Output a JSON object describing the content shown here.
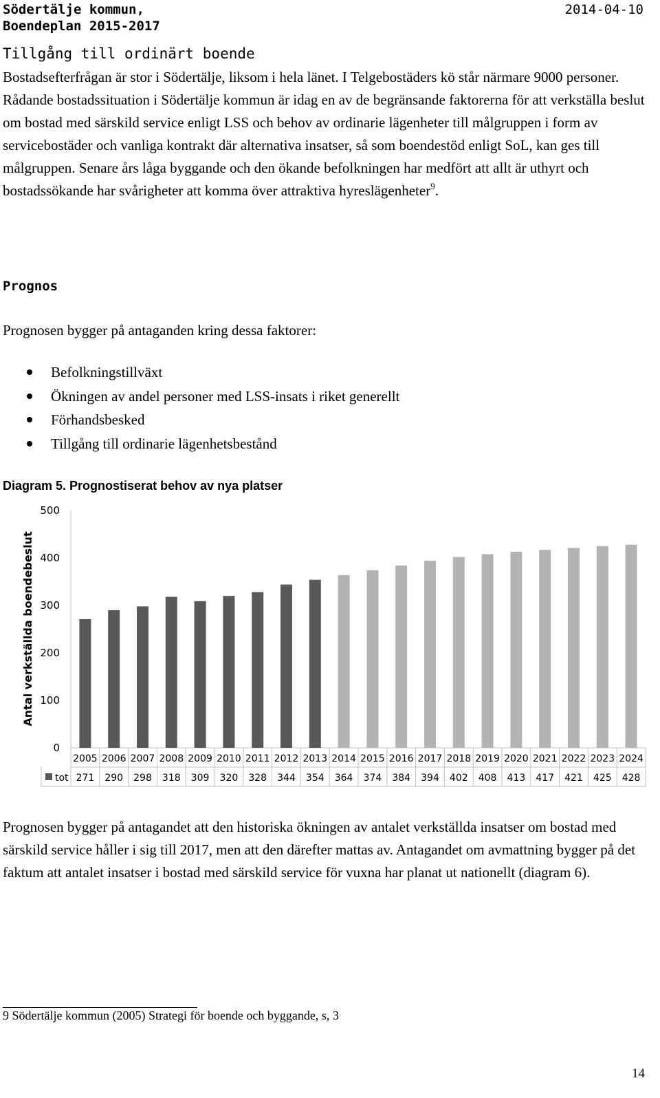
{
  "header": {
    "line1": "Södertälje kommun,",
    "line2": "Boendeplan 2015-2017",
    "date": "2014-04-10"
  },
  "section": {
    "title": "Tillgång till ordinärt boende",
    "paragraph": "Bostadsefterfrågan är stor i Södertälje, liksom i hela länet. I Telgebostäders kö står närmare 9000 personer. Rådande bostadssituation i Södertälje kommun är idag en av de begränsande faktorerna för att verkställa beslut om bostad med särskild service enligt LSS och behov av ordinarie lägenheter till målgruppen i form av servicebostäder och vanliga kontrakt där alternativa insatser, så som boendestöd enligt SoL, kan ges till målgruppen. Senare års låga byggande och den ökande befolkningen har medfört att allt är uthyrt och bostadssökande har svårigheter att komma över attraktiva hyreslägenheter",
    "footnote_ref": "9",
    "paragraph_end": "."
  },
  "prognos": {
    "title": "Prognos",
    "intro": "Prognosen bygger på antaganden kring dessa faktorer:",
    "bullets": [
      "Befolkningstillväxt",
      "Ökningen av andel personer med LSS-insats i riket generellt",
      "Förhandsbesked",
      "Tillgång till ordinarie lägenhetsbestånd"
    ]
  },
  "diagram_title": "Diagram 5.  Prognostiserat behov av nya platser",
  "chart_data": {
    "type": "bar",
    "title": "Prognostiserat behov av nya platser",
    "ylabel": "Antal verkställda boendebeslut",
    "ylim": [
      0,
      500
    ],
    "yticks": [
      0,
      100,
      200,
      300,
      400,
      500
    ],
    "grid": false,
    "legend": "table-below",
    "categories": [
      "2005",
      "2006",
      "2007",
      "2008",
      "2009",
      "2010",
      "2011",
      "2012",
      "2013",
      "2014",
      "2015",
      "2016",
      "2017",
      "2018",
      "2019",
      "2020",
      "2021",
      "2022",
      "2023",
      "2024"
    ],
    "series": [
      {
        "name": "tot",
        "values": [
          271,
          290,
          298,
          318,
          309,
          320,
          328,
          344,
          354,
          364,
          374,
          384,
          394,
          402,
          408,
          413,
          417,
          421,
          425,
          428
        ]
      }
    ],
    "historical_color": "#595959",
    "forecast_color": "#b3b3b3",
    "forecast_start_index": 9,
    "axis_color": "#bfbfbf"
  },
  "conclusion": "Prognosen bygger på antagandet att den historiska ökningen av antalet verkställda insatser om bostad med särskild service håller i sig till 2017, men att den därefter mattas av. Antagandet om avmattning bygger på det faktum att antalet insatser i bostad med särskild service för vuxna har planat ut nationellt (diagram 6).",
  "footnote": "9 Södertälje kommun (2005) Strategi för boende och byggande, s, 3",
  "page_number": "14"
}
